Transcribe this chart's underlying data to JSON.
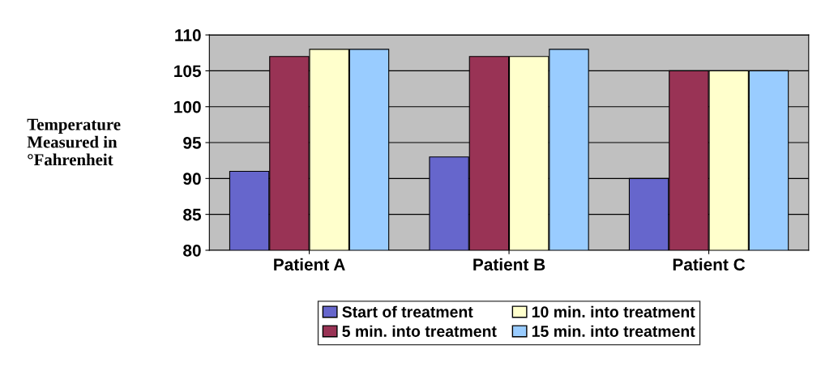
{
  "chart_data": {
    "type": "bar",
    "ylabel": "Temperature\nMeasured in\n°Fahrenheit",
    "categories": [
      "Patient A",
      "Patient B",
      "Patient C"
    ],
    "series": [
      {
        "name": "Start of treatment",
        "color": "#6666cc",
        "values": [
          91,
          93,
          90
        ]
      },
      {
        "name": "5 min. into treatment",
        "color": "#993355",
        "values": [
          107,
          107,
          105
        ]
      },
      {
        "name": "10 min. into treatment",
        "color": "#ffffcc",
        "values": [
          108,
          107,
          105
        ]
      },
      {
        "name": "15 min. into treatment",
        "color": "#99ccff",
        "values": [
          108,
          108,
          105
        ]
      }
    ],
    "ylim": [
      80,
      110
    ],
    "yticks": [
      80,
      85,
      90,
      95,
      100,
      105,
      110
    ],
    "grid": "y",
    "legend": "bottom"
  }
}
